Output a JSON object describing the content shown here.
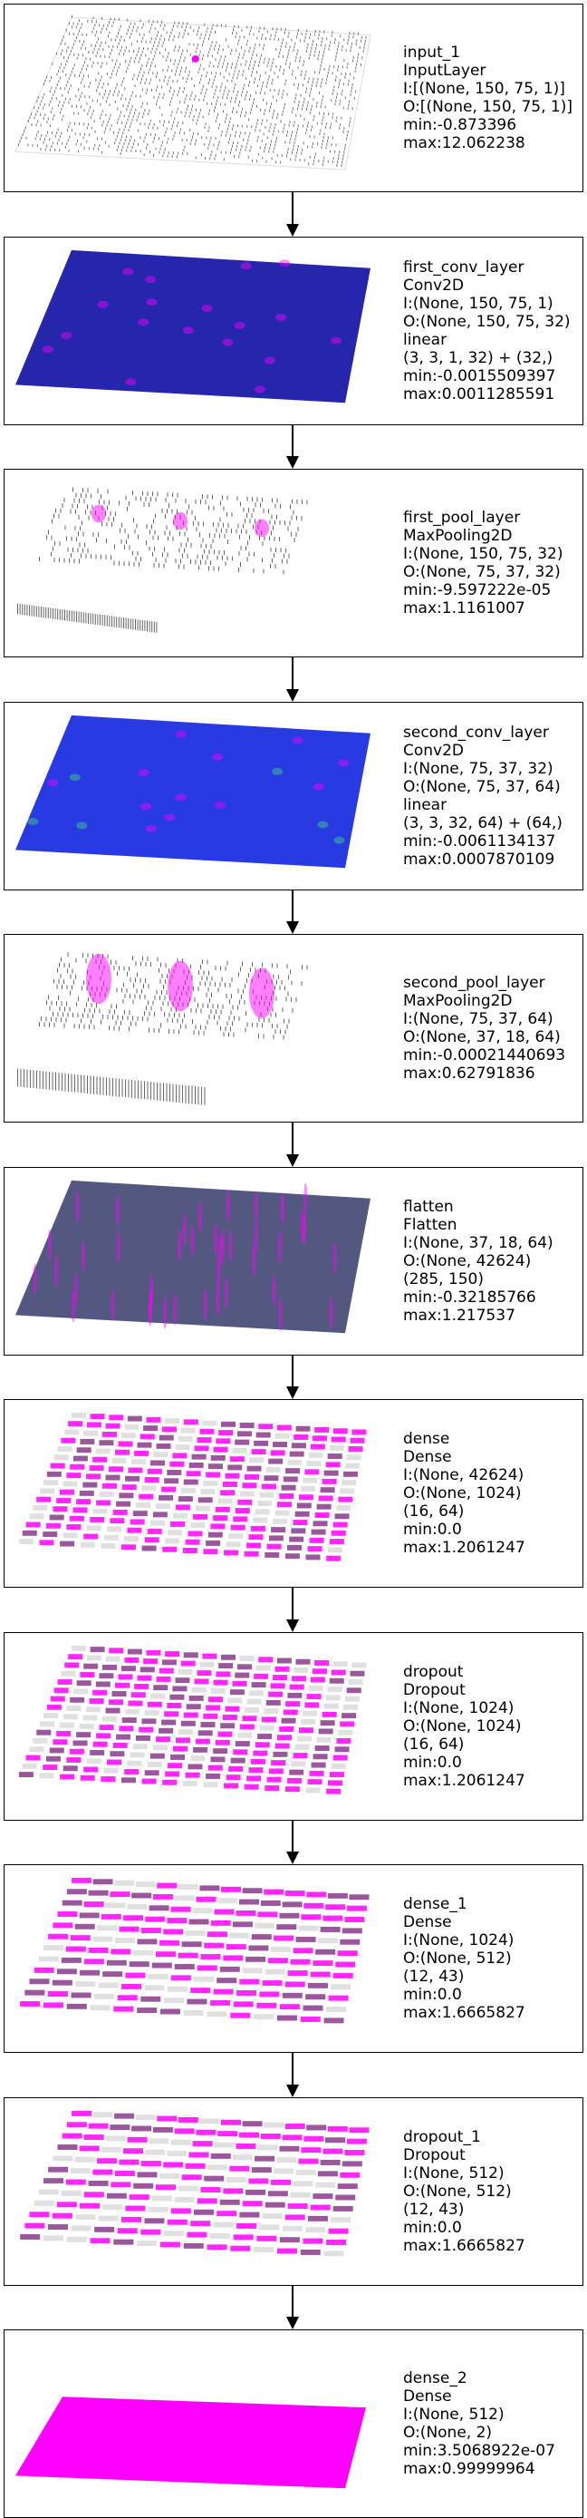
{
  "colors": {
    "border": "#000000",
    "low": "#1a1aa8",
    "high": "#ff00ff",
    "mid": "#3a3fd6"
  },
  "layers": [
    {
      "name": "input_1",
      "type": "InputLayer",
      "lines": [
        "I:[(None, 150, 75, 1)]",
        "O:[(None, 150, 75, 1)]",
        "min:-0.873396",
        "max:12.062238"
      ],
      "style": "input"
    },
    {
      "name": "first_conv_layer",
      "type": "Conv2D",
      "lines": [
        "I:(None, 150, 75, 1)",
        "O:(None, 150, 75, 32)",
        "linear",
        "(3, 3, 1, 32) + (32,)",
        "min:-0.0015509397",
        "max:0.0011285591"
      ],
      "style": "conv"
    },
    {
      "name": "first_pool_layer",
      "type": "MaxPooling2D",
      "lines": [
        "I:(None, 150, 75, 32)",
        "O:(None, 75, 37, 32)",
        "min:-9.597222e-05",
        "max:1.1161007"
      ],
      "style": "pool"
    },
    {
      "name": "second_conv_layer",
      "type": "Conv2D",
      "lines": [
        "I:(None, 75, 37, 32)",
        "O:(None, 75, 37, 64)",
        "linear",
        "(3, 3, 32, 64) + (64,)",
        "min:-0.0061134137",
        "max:0.0007870109"
      ],
      "style": "conv2"
    },
    {
      "name": "second_pool_layer",
      "type": "MaxPooling2D",
      "lines": [
        "I:(None, 75, 37, 64)",
        "O:(None, 37, 18, 64)",
        "min:-0.00021440693",
        "max:0.62791836"
      ],
      "style": "pool2"
    },
    {
      "name": "flatten",
      "type": "Flatten",
      "lines": [
        "I:(None, 37, 18, 64)",
        "O:(None, 42624)",
        "(285, 150)",
        "min:-0.32185766",
        "max:1.217537"
      ],
      "style": "flatten"
    },
    {
      "name": "dense",
      "type": "Dense",
      "lines": [
        "I:(None, 42624)",
        "O:(None, 1024)",
        "(16, 64)",
        "min:0.0",
        "max:1.2061247"
      ],
      "style": "dense"
    },
    {
      "name": "dropout",
      "type": "Dropout",
      "lines": [
        "I:(None, 1024)",
        "O:(None, 1024)",
        "(16, 64)",
        "min:0.0",
        "max:1.2061247"
      ],
      "style": "dense"
    },
    {
      "name": "dense_1",
      "type": "Dense",
      "lines": [
        "I:(None, 1024)",
        "O:(None, 512)",
        "(12, 43)",
        "min:0.0",
        "max:1.6665827"
      ],
      "style": "dense1"
    },
    {
      "name": "dropout_1",
      "type": "Dropout",
      "lines": [
        "I:(None, 512)",
        "O:(None, 512)",
        "(12, 43)",
        "min:0.0",
        "max:1.6665827"
      ],
      "style": "dense1"
    },
    {
      "name": "dense_2",
      "type": "Dense",
      "lines": [
        "I:(None, 512)",
        "O:(None, 2)",
        "min:3.5068922e-07",
        "max:0.99999964"
      ],
      "style": "out"
    }
  ]
}
